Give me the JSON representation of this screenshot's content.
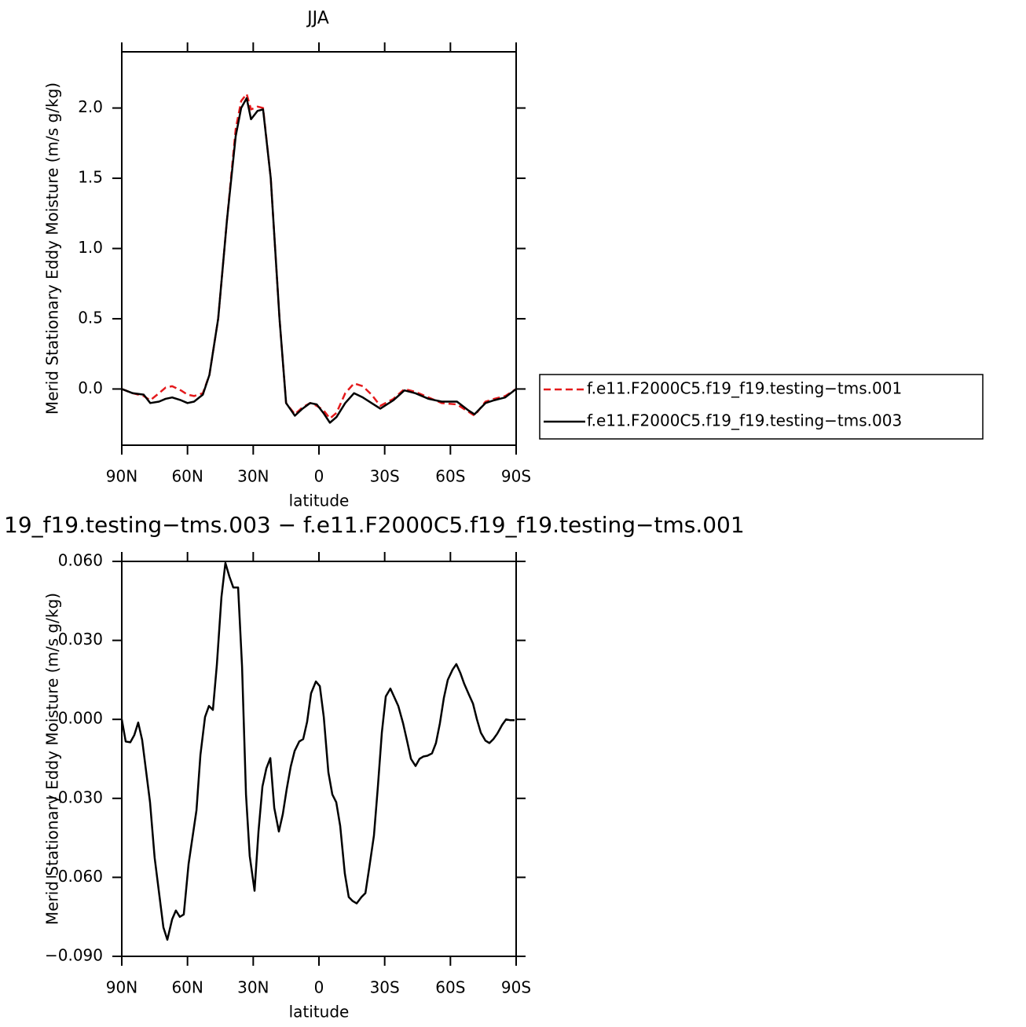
{
  "chart_data": [
    {
      "type": "line",
      "title": "JJA",
      "xlabel": "latitude",
      "ylabel": "Merid Stationary Eddy Moisture (m/s g/kg)",
      "x": [
        90,
        85,
        80,
        77,
        73,
        70,
        67,
        63,
        60,
        57,
        53,
        50,
        46,
        42,
        38,
        35.5,
        33,
        31,
        28,
        25.5,
        22,
        18,
        15,
        11,
        7.5,
        4,
        1,
        -2,
        -5,
        -8,
        -12,
        -16,
        -20,
        -24,
        -28,
        -34,
        -39,
        -44,
        -50,
        -56,
        -63,
        -68,
        -71,
        -76,
        -80,
        -85,
        -90
      ],
      "series": [
        {
          "name": "f.e11.F2000C5.f19_f19.testing−tms.001",
          "color": "#e41a1c",
          "line_style": "dashed",
          "values": [
            0,
            -0.03,
            -0.05,
            -0.08,
            -0.03,
            0.01,
            0.02,
            -0.01,
            -0.04,
            -0.05,
            -0.03,
            0.1,
            0.5,
            1.2,
            1.85,
            2.05,
            2.1,
            1.99,
            2.01,
            2.0,
            1.5,
            0.5,
            -0.1,
            -0.18,
            -0.13,
            -0.1,
            -0.12,
            -0.15,
            -0.21,
            -0.17,
            -0.03,
            0.04,
            0.02,
            -0.04,
            -0.12,
            -0.07,
            0.0,
            -0.02,
            -0.06,
            -0.1,
            -0.11,
            -0.16,
            -0.19,
            -0.09,
            -0.07,
            -0.05,
            0
          ]
        },
        {
          "name": "f.e11.F2000C5.f19_f19.testing−tms.003",
          "color": "#000000",
          "line_style": "solid",
          "values": [
            0,
            -0.03,
            -0.04,
            -0.1,
            -0.09,
            -0.07,
            -0.06,
            -0.08,
            -0.1,
            -0.09,
            -0.04,
            0.1,
            0.5,
            1.2,
            1.8,
            2.0,
            2.07,
            1.92,
            1.98,
            1.99,
            1.5,
            0.5,
            -0.1,
            -0.19,
            -0.14,
            -0.1,
            -0.11,
            -0.17,
            -0.24,
            -0.2,
            -0.1,
            -0.03,
            -0.06,
            -0.1,
            -0.14,
            -0.08,
            -0.01,
            -0.03,
            -0.07,
            -0.09,
            -0.09,
            -0.15,
            -0.18,
            -0.1,
            -0.08,
            -0.06,
            0
          ]
        }
      ],
      "xlim": [
        90,
        -90
      ],
      "xticks": [
        {
          "value": 90,
          "label": "90N"
        },
        {
          "value": 60,
          "label": "60N"
        },
        {
          "value": 30,
          "label": "30N"
        },
        0,
        {
          "value": -30,
          "label": "30S"
        },
        {
          "value": -60,
          "label": "60S"
        },
        {
          "value": -90,
          "label": "90S"
        }
      ],
      "ylim": [
        -0.4,
        2.4
      ],
      "yticks": [
        {
          "value": 0,
          "label": "0.0"
        },
        0.5,
        {
          "value": 1,
          "label": "1.0"
        },
        1.5,
        {
          "value": 2,
          "label": "2.0"
        }
      ],
      "legend": "outside-right"
    },
    {
      "type": "line",
      "title": "19_f19.testing−tms.003 − f.e11.F2000C5.f19_f19.testing−tms.001",
      "xlabel": "latitude",
      "ylabel": "Merid Stationary Eddy Moisture (m/s g/kg)",
      "x": [
        90,
        88.2,
        86.1,
        84.3,
        82.5,
        80.7,
        77.1,
        75,
        71,
        69.2,
        67,
        65.3,
        63.5,
        61.7,
        59.5,
        55.9,
        54.1,
        52,
        50.2,
        48.4,
        46.6,
        44.5,
        42.7,
        40.9,
        39.1,
        36.9,
        35.1,
        33.3,
        31.6,
        29.4,
        27.6,
        25.8,
        24,
        22.2,
        20.4,
        18.3,
        16.5,
        14.7,
        12.9,
        11.1,
        9,
        7.2,
        5.4,
        3.6,
        1.4,
        -0.4,
        -2.2,
        -4.3,
        -6.1,
        -7.9,
        -9.7,
        -11.8,
        -13.6,
        -15.4,
        -17.2,
        -19.4,
        -21.2,
        -23,
        -25.1,
        -26.9,
        -28.7,
        -30.5,
        -32.6,
        -34.4,
        -36.2,
        -38.4,
        -40.2,
        -42,
        -44.1,
        -45.9,
        -47.7,
        -49.5,
        -51.6,
        -53.4,
        -55.2,
        -57,
        -58.8,
        -61,
        -62.7,
        -64.5,
        -66.3,
        -68.5,
        -70.3,
        -72.1,
        -73.9,
        -76,
        -77.8,
        -79.6,
        -81.4,
        -83.6,
        -85.4,
        -87.2,
        -89.3
      ],
      "series": [
        {
          "color": "#000000",
          "line_style": "solid",
          "values": [
            0,
            -0.0084,
            -0.0087,
            -0.006,
            -0.0012,
            -0.0078,
            -0.0315,
            -0.0525,
            -0.079,
            -0.0837,
            -0.0759,
            -0.0726,
            -0.075,
            -0.0741,
            -0.0549,
            -0.0345,
            -0.0135,
            0.0009,
            0.0051,
            0.0036,
            0.0207,
            0.0465,
            0.0594,
            0.0543,
            0.0501,
            0.0501,
            0.0201,
            -0.0285,
            -0.0519,
            -0.0651,
            -0.0426,
            -0.0255,
            -0.0186,
            -0.0147,
            -0.0336,
            -0.0426,
            -0.036,
            -0.0264,
            -0.018,
            -0.012,
            -0.0084,
            -0.0075,
            -0.0009,
            0.0099,
            0.0144,
            0.0126,
            0.0009,
            -0.0201,
            -0.0285,
            -0.0315,
            -0.0405,
            -0.0585,
            -0.0675,
            -0.069,
            -0.0699,
            -0.0675,
            -0.066,
            -0.0561,
            -0.0441,
            -0.0255,
            -0.0051,
            0.0087,
            0.0117,
            0.0084,
            0.0051,
            -0.0015,
            -0.0081,
            -0.015,
            -0.0177,
            -0.015,
            -0.0141,
            -0.0138,
            -0.0129,
            -0.009,
            -0.0015,
            0.0081,
            0.015,
            0.0189,
            0.021,
            0.0177,
            0.0135,
            0.0093,
            0.006,
            0,
            -0.0051,
            -0.0081,
            -0.009,
            -0.0075,
            -0.0054,
            -0.0021,
            0,
            -0.0003,
            -0.0003
          ]
        }
      ],
      "xlim": [
        90,
        -90
      ],
      "xticks": [
        {
          "value": 90,
          "label": "90N"
        },
        {
          "value": 60,
          "label": "60N"
        },
        {
          "value": 30,
          "label": "30N"
        },
        0,
        {
          "value": -30,
          "label": "30S"
        },
        {
          "value": -60,
          "label": "60S"
        },
        {
          "value": -90,
          "label": "90S"
        }
      ],
      "ylim": [
        -0.09,
        0.06
      ],
      "yticks": [
        {
          "value": -0.09,
          "label": "−0.090"
        },
        {
          "value": -0.06,
          "label": "−0.060"
        },
        {
          "value": -0.03,
          "label": "−0.030"
        },
        {
          "value": 0,
          "label": "0.000"
        },
        {
          "value": 0.03,
          "label": "0.030"
        },
        {
          "value": 0.06,
          "label": "0.060"
        }
      ]
    }
  ]
}
